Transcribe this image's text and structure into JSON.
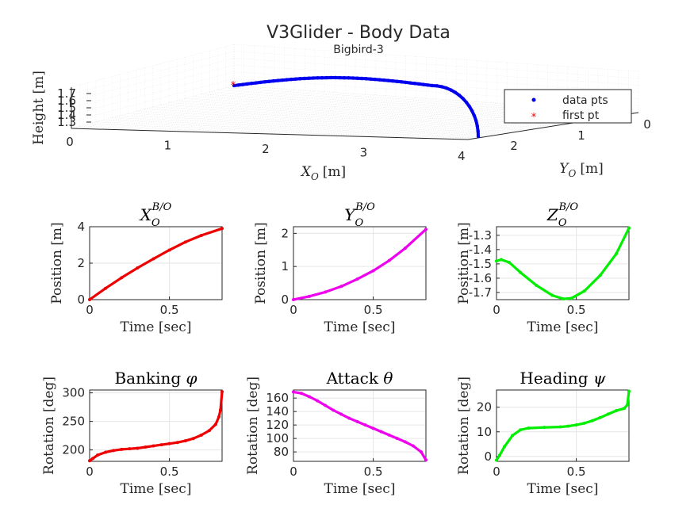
{
  "figure": {
    "title": "V3Glider - Body Data",
    "subtitle": "Bigbird-3"
  },
  "chart_data": [
    {
      "id": "trajectory3d",
      "type": "scatter",
      "xlabel": "X",
      "xlabel_sub": "O",
      "xlabel_unit": "[m]",
      "ylabel": "Y",
      "ylabel_sub": "O",
      "ylabel_unit": "[m]",
      "zlabel": "Height [m]",
      "x_ticks": [
        "0",
        "1",
        "2",
        "3",
        "4"
      ],
      "y_ticks": [
        "0",
        "1",
        "2"
      ],
      "z_ticks": [
        "1.3",
        "1.4",
        "1.5",
        "1.6",
        "1.7"
      ],
      "legend": {
        "position": "top-right",
        "entries": [
          "data pts",
          "first pt"
        ]
      },
      "grid": true
    },
    {
      "id": "xpos",
      "type": "line",
      "color": "#ee0000",
      "title_main": "X",
      "title_sub": "O",
      "title_sup": "B/O",
      "xlabel": "Time [sec]",
      "ylabel": "Position [m]",
      "xlim": [
        0,
        0.83
      ],
      "ylim": [
        0,
        4
      ],
      "xticks": [
        0,
        0.5
      ],
      "xtick_labels": [
        "0",
        "0.5"
      ],
      "yticks": [
        0,
        2,
        4
      ],
      "ytick_labels": [
        "0",
        "2",
        "4"
      ],
      "x": [
        0,
        0.1,
        0.2,
        0.3,
        0.4,
        0.5,
        0.6,
        0.7,
        0.83
      ],
      "y": [
        0,
        0.62,
        1.2,
        1.74,
        2.24,
        2.72,
        3.16,
        3.52,
        3.9
      ]
    },
    {
      "id": "ypos",
      "type": "line",
      "color": "#ee00ee",
      "title_main": "Y",
      "title_sub": "O",
      "title_sup": "B/O",
      "xlabel": "Time [sec]",
      "ylabel": "Position [m]",
      "xlim": [
        0,
        0.83
      ],
      "ylim": [
        0,
        2.2
      ],
      "xticks": [
        0,
        0.5
      ],
      "xtick_labels": [
        "0",
        "0.5"
      ],
      "yticks": [
        0,
        1,
        2
      ],
      "ytick_labels": [
        "0",
        "1",
        "2"
      ],
      "x": [
        0,
        0.1,
        0.2,
        0.3,
        0.4,
        0.5,
        0.6,
        0.7,
        0.83
      ],
      "y": [
        0,
        0.1,
        0.23,
        0.4,
        0.62,
        0.87,
        1.18,
        1.55,
        2.12
      ]
    },
    {
      "id": "zpos",
      "type": "line",
      "color": "#00ee00",
      "title_main": "Z",
      "title_sub": "O",
      "title_sup": "B/O",
      "xlabel": "Time [sec]",
      "ylabel": "Position [m]",
      "xlim": [
        0,
        0.83
      ],
      "ylim": [
        -1.75,
        -1.24
      ],
      "xticks": [
        0,
        0.5
      ],
      "xtick_labels": [
        "0",
        "0.5"
      ],
      "yticks": [
        -1.7,
        -1.6,
        -1.5,
        -1.4,
        -1.3
      ],
      "ytick_labels": [
        "-1.7",
        "-1.6",
        "-1.5",
        "-1.4",
        "-1.3"
      ],
      "x": [
        0,
        0.03,
        0.08,
        0.15,
        0.25,
        0.35,
        0.42,
        0.47,
        0.55,
        0.65,
        0.75,
        0.83
      ],
      "y": [
        -1.48,
        -1.47,
        -1.49,
        -1.56,
        -1.65,
        -1.72,
        -1.745,
        -1.74,
        -1.69,
        -1.58,
        -1.43,
        -1.25
      ]
    },
    {
      "id": "phi",
      "type": "line",
      "color": "#ee0000",
      "title_main": "Banking",
      "title_sym": "φ",
      "xlabel": "Time [sec]",
      "ylabel": "Rotation [deg]",
      "xlim": [
        0,
        0.83
      ],
      "ylim": [
        180,
        305
      ],
      "xticks": [
        0,
        0.5
      ],
      "xtick_labels": [
        "0",
        "0.5"
      ],
      "yticks": [
        200,
        250,
        300
      ],
      "ytick_labels": [
        "200",
        "250",
        "300"
      ],
      "x": [
        0,
        0.02,
        0.05,
        0.1,
        0.15,
        0.2,
        0.25,
        0.3,
        0.35,
        0.4,
        0.45,
        0.5,
        0.55,
        0.6,
        0.65,
        0.7,
        0.75,
        0.79,
        0.81,
        0.82,
        0.83
      ],
      "y": [
        181,
        185,
        191,
        196,
        199,
        201,
        202,
        203,
        205,
        207,
        209,
        211,
        213,
        216,
        220,
        226,
        234,
        245,
        258,
        270,
        302
      ]
    },
    {
      "id": "theta",
      "type": "line",
      "color": "#ee00ee",
      "title_main": "Attack",
      "title_sym": "θ",
      "xlabel": "Time [sec]",
      "ylabel": "Rotation [deg]",
      "xlim": [
        0,
        0.83
      ],
      "ylim": [
        66,
        172
      ],
      "xticks": [
        0,
        0.5
      ],
      "xtick_labels": [
        "0",
        "0.5"
      ],
      "yticks": [
        80,
        100,
        120,
        140,
        160
      ],
      "ytick_labels": [
        "80",
        "100",
        "120",
        "140",
        "160"
      ],
      "x": [
        0,
        0.05,
        0.1,
        0.15,
        0.2,
        0.25,
        0.3,
        0.35,
        0.4,
        0.45,
        0.5,
        0.55,
        0.6,
        0.65,
        0.7,
        0.75,
        0.8,
        0.83
      ],
      "y": [
        169,
        167,
        162,
        156,
        149,
        142,
        136,
        130,
        125,
        120,
        115,
        110,
        105,
        100,
        95,
        89,
        80,
        68
      ]
    },
    {
      "id": "psi",
      "type": "line",
      "color": "#00ee00",
      "title_main": "Heading",
      "title_sym": "ψ",
      "xlabel": "Time [sec]",
      "ylabel": "Rotation [deg]",
      "xlim": [
        0,
        0.83
      ],
      "ylim": [
        -2,
        27
      ],
      "xticks": [
        0,
        0.5
      ],
      "xtick_labels": [
        "0",
        "0.5"
      ],
      "yticks": [
        0,
        10,
        20
      ],
      "ytick_labels": [
        "0",
        "10",
        "20"
      ],
      "x": [
        0,
        0.02,
        0.05,
        0.1,
        0.15,
        0.2,
        0.3,
        0.4,
        0.45,
        0.5,
        0.55,
        0.6,
        0.65,
        0.7,
        0.75,
        0.8,
        0.82,
        0.83
      ],
      "y": [
        -1.5,
        0.5,
        4,
        8.5,
        10.8,
        11.5,
        11.8,
        12,
        12.3,
        12.8,
        13.5,
        14.5,
        15.8,
        17.2,
        18.6,
        19.5,
        21,
        26.5
      ]
    }
  ]
}
